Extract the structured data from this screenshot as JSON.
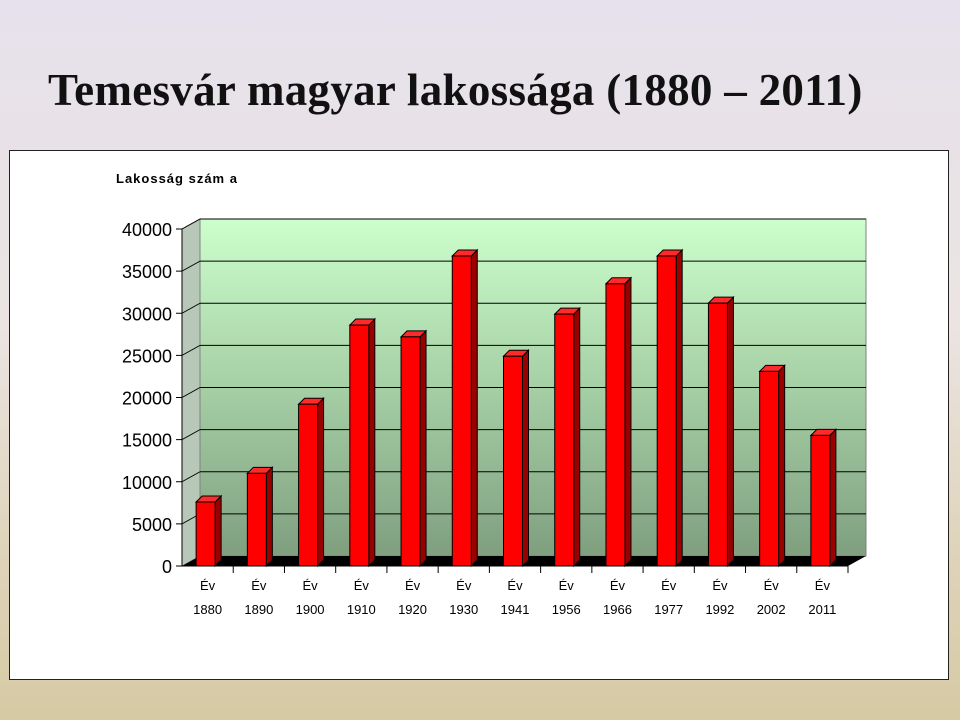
{
  "slide": {
    "title": "Temesvár magyar lakossága (1880 – 2011)"
  },
  "chart_data": {
    "type": "bar",
    "title": "",
    "ylabel": "Lakosság szám a",
    "xlabel": "",
    "category_prefix": "Év",
    "categories": [
      "1880",
      "1890",
      "1900",
      "1910",
      "1920",
      "1930",
      "1941",
      "1956",
      "1966",
      "1977",
      "1992",
      "2002",
      "2011"
    ],
    "values": [
      7600,
      11000,
      19200,
      28600,
      27200,
      36800,
      24900,
      29900,
      33500,
      36800,
      31200,
      23100,
      15500
    ],
    "ylim": [
      0,
      40000
    ],
    "yticks": [
      0,
      5000,
      10000,
      15000,
      20000,
      25000,
      30000,
      35000,
      40000
    ],
    "grid": true,
    "legend": "none",
    "colors": {
      "bar_front": "#ff0000",
      "bar_side": "#990000",
      "bar_top": "#ff2a2a",
      "plot_bg_top": "#ccffcc",
      "plot_bg_bottom": "#7f9f7f",
      "floor": "#000000"
    }
  }
}
